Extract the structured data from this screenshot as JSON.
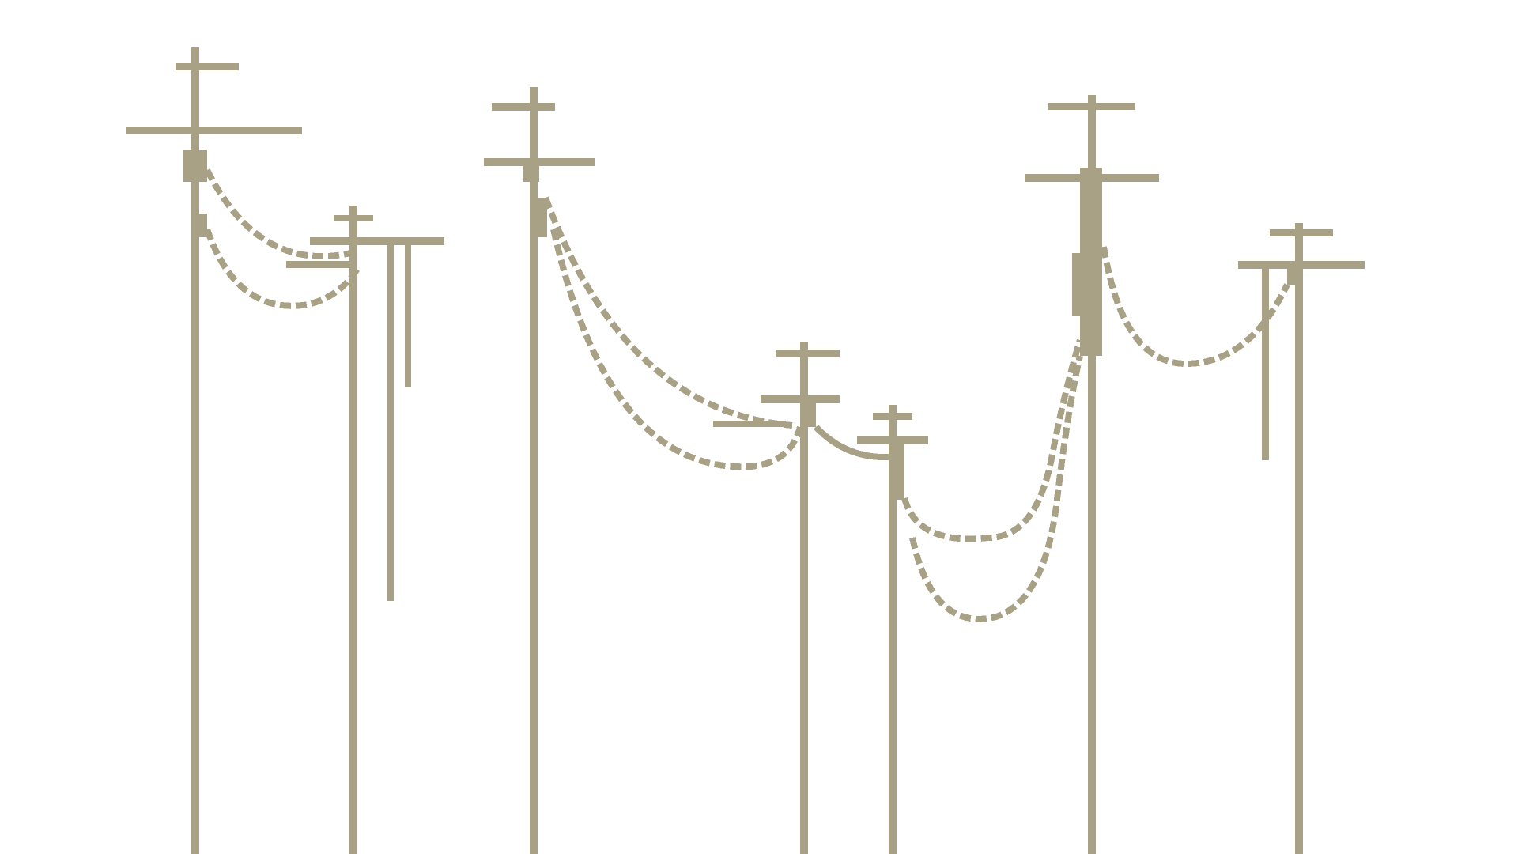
{
  "scene": {
    "title": "",
    "background_color": "#ffffff",
    "line_color": "#a8a186",
    "elements": {
      "poles": [
        {
          "name": "utility-pole-1"
        },
        {
          "name": "utility-pole-2"
        },
        {
          "name": "utility-pole-3"
        },
        {
          "name": "utility-pole-4"
        },
        {
          "name": "utility-pole-5"
        },
        {
          "name": "utility-pole-6"
        },
        {
          "name": "utility-pole-7"
        }
      ],
      "wire_groups": [
        {
          "name": "wires-pole-1-to-2"
        },
        {
          "name": "wires-pole-3-to-4"
        },
        {
          "name": "wires-pole-4-to-5"
        },
        {
          "name": "wires-pole-5-to-6"
        },
        {
          "name": "wires-pole-6-to-7"
        }
      ]
    }
  }
}
